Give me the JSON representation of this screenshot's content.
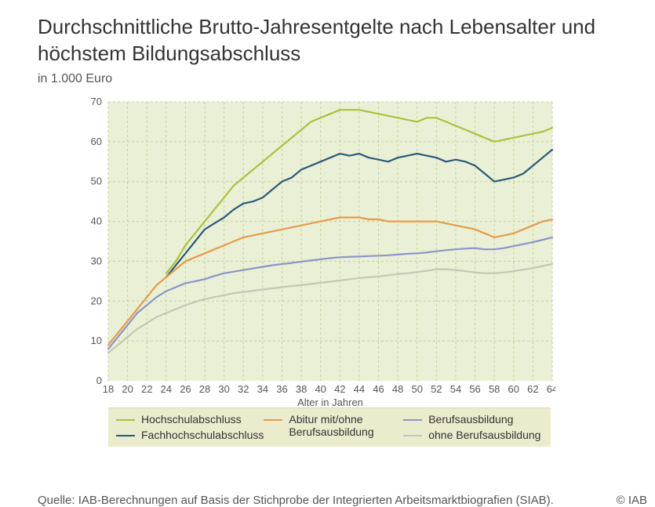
{
  "title": "Durchschnittliche Brutto-Jahresentgelte nach Lebensalter und höchstem Bildungsabschluss",
  "subtitle": "in 1.000 Euro",
  "chart": {
    "type": "line",
    "background_color": "#eaf0d6",
    "grid_color": "#c6cf9a",
    "grid_dash": "3,3",
    "axis_text_color": "#555555",
    "axis_fontsize": 13,
    "xlabel": "Alter in Jahren",
    "ylabel": "",
    "xlim": [
      18,
      64
    ],
    "ylim": [
      0,
      70
    ],
    "ytick_step": 10,
    "xticks": [
      18,
      20,
      22,
      24,
      26,
      28,
      30,
      32,
      34,
      36,
      38,
      40,
      42,
      44,
      46,
      48,
      50,
      52,
      54,
      56,
      58,
      60,
      62,
      64
    ],
    "x_values": [
      18,
      19,
      20,
      21,
      22,
      23,
      24,
      25,
      26,
      27,
      28,
      29,
      30,
      31,
      32,
      33,
      34,
      35,
      36,
      37,
      38,
      39,
      40,
      41,
      42,
      43,
      44,
      45,
      46,
      47,
      48,
      49,
      50,
      51,
      52,
      53,
      54,
      55,
      56,
      57,
      58,
      59,
      60,
      61,
      62,
      63,
      64
    ],
    "series": [
      {
        "name": "Hochschulabschluss",
        "color": "#a9c23f",
        "width": 2.2,
        "data": [
          null,
          null,
          null,
          null,
          null,
          null,
          27,
          30,
          34,
          37,
          40,
          43,
          46,
          49,
          51,
          53,
          55,
          57,
          59,
          61,
          63,
          65,
          66,
          67,
          68,
          68,
          68,
          67.5,
          67,
          66.5,
          66,
          65.5,
          65,
          66,
          66,
          65,
          64,
          63,
          62,
          61,
          60,
          60.5,
          61,
          61.5,
          62,
          62.5,
          63.5
        ]
      },
      {
        "name": "Fachhochschulabschluss",
        "color": "#2a5a7b",
        "width": 2.2,
        "data": [
          null,
          null,
          null,
          null,
          null,
          null,
          26,
          29,
          32,
          35,
          38,
          39.5,
          41,
          43,
          44.5,
          45,
          46,
          48,
          50,
          51,
          53,
          54,
          55,
          56,
          57,
          56.5,
          57,
          56,
          55.5,
          55,
          56,
          56.5,
          57,
          56.5,
          56,
          55,
          55.5,
          55,
          54,
          52,
          50,
          50.5,
          51,
          52,
          54,
          56,
          58
        ]
      },
      {
        "name": "Abitur mit/ohne Berufsausbildung",
        "color": "#e79b4a",
        "width": 2.2,
        "data": [
          9,
          12,
          15,
          18,
          21,
          24,
          26,
          28,
          30,
          31,
          32,
          33,
          34,
          35,
          36,
          36.5,
          37,
          37.5,
          38,
          38.5,
          39,
          39.5,
          40,
          40.5,
          41,
          41,
          41,
          40.5,
          40.5,
          40,
          40,
          40,
          40,
          40,
          40,
          39.5,
          39,
          38.5,
          38,
          37,
          36,
          36.5,
          37,
          38,
          39,
          40,
          40.5
        ]
      },
      {
        "name": "Berufsausbildung",
        "color": "#8a96c8",
        "width": 2.2,
        "data": [
          8,
          11,
          14,
          17,
          19,
          21,
          22.5,
          23.5,
          24.5,
          25,
          25.5,
          26.3,
          27,
          27.4,
          27.8,
          28.2,
          28.6,
          29,
          29.3,
          29.6,
          29.9,
          30.2,
          30.5,
          30.8,
          31,
          31.1,
          31.2,
          31.3,
          31.4,
          31.5,
          31.7,
          31.9,
          32,
          32.2,
          32.5,
          32.8,
          33,
          33.2,
          33.3,
          33,
          33,
          33.3,
          33.8,
          34.3,
          34.8,
          35.4,
          36
        ]
      },
      {
        "name": "ohne Berufsausbildung",
        "color": "#c4c7b3",
        "width": 2.2,
        "data": [
          7,
          9,
          11,
          13,
          14.5,
          16,
          17,
          18,
          19,
          19.8,
          20.5,
          21,
          21.5,
          22,
          22.3,
          22.6,
          22.9,
          23.2,
          23.5,
          23.8,
          24,
          24.3,
          24.6,
          24.9,
          25.2,
          25.5,
          25.8,
          26,
          26.2,
          26.5,
          26.8,
          27,
          27.3,
          27.6,
          28,
          28,
          27.8,
          27.5,
          27.2,
          27,
          27,
          27.2,
          27.5,
          27.9,
          28.3,
          28.8,
          29.3
        ]
      }
    ]
  },
  "legend": {
    "background": "#eaeccd",
    "columns": [
      [
        {
          "label": "Hochschulabschluss",
          "color": "#a9c23f"
        },
        {
          "label": "Fachhochschulabschluss",
          "color": "#2a5a7b"
        }
      ],
      [
        {
          "label": "Abitur mit/ohne Berufsausbildung",
          "color": "#e79b4a"
        }
      ],
      [
        {
          "label": "Berufsausbildung",
          "color": "#8a96c8"
        },
        {
          "label": "ohne Berufsausbildung",
          "color": "#c4c7b3"
        }
      ]
    ]
  },
  "footer": {
    "source": "Quelle: IAB-Berechnungen auf Basis der Stichprobe der Integrierten Arbeitsmarktbiografien (SIAB).",
    "copyright": "© IAB"
  }
}
